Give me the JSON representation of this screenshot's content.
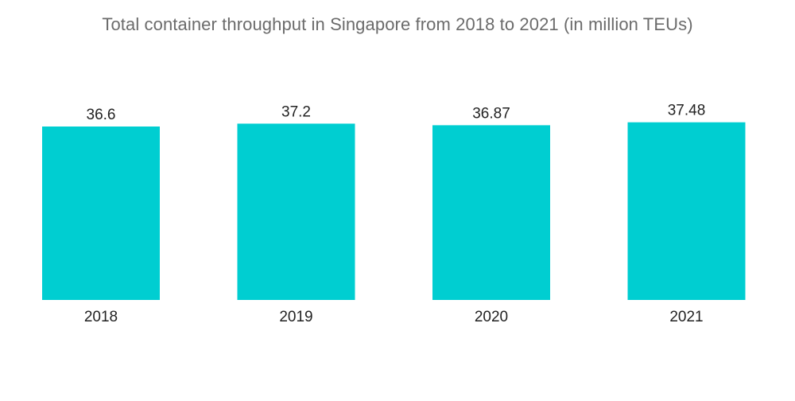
{
  "chart_data": {
    "type": "bar",
    "title": "Total container throughput in Singapore from 2018 to 2021 (in million  TEUs)",
    "categories": [
      "2018",
      "2019",
      "2020",
      "2021"
    ],
    "values": [
      36.6,
      37.2,
      36.87,
      37.48
    ],
    "value_labels": [
      "36.6",
      "37.2",
      "36.87",
      "37.48"
    ],
    "xlabel": "",
    "ylabel": "",
    "grid": false,
    "legend": "none",
    "bar_color": "#00ced1"
  }
}
